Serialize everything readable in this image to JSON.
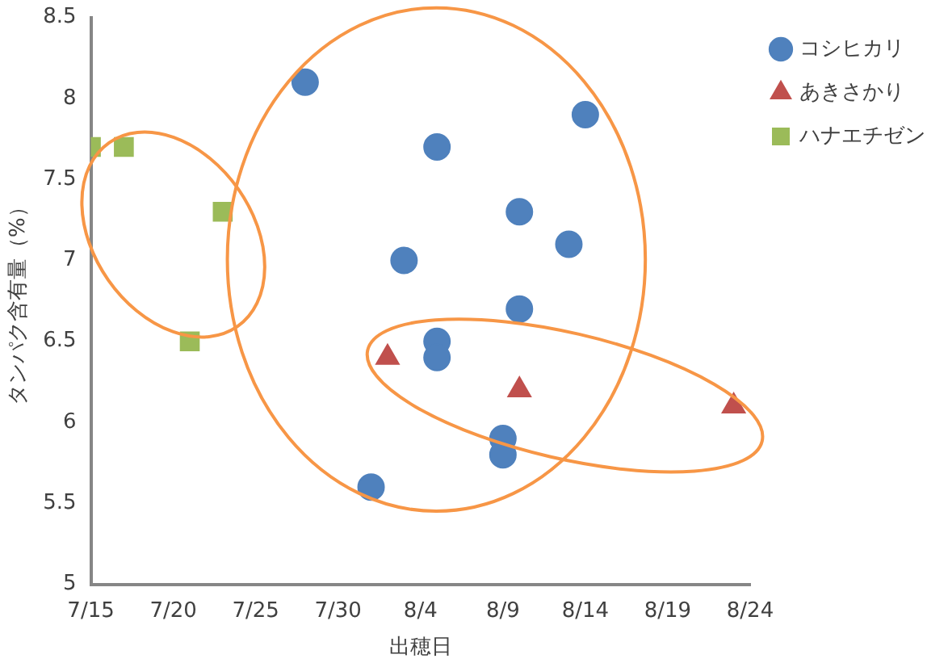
{
  "chart_data": {
    "type": "scatter",
    "xlabel": "出穂日",
    "ylabel": "タンパク含有量（%）",
    "xlim": [
      "--07-15",
      "--08-24"
    ],
    "xticks": [
      {
        "value": "--07-15",
        "label": "7/15"
      },
      {
        "value": "--07-20",
        "label": "7/20"
      },
      {
        "value": "--07-25",
        "label": "7/25"
      },
      {
        "value": "--07-30",
        "label": "7/30"
      },
      {
        "value": "--08-04",
        "label": "8/4"
      },
      {
        "value": "--08-09",
        "label": "8/9"
      },
      {
        "value": "--08-14",
        "label": "8/14"
      },
      {
        "value": "--08-19",
        "label": "8/19"
      },
      {
        "value": "--08-24",
        "label": "8/24"
      }
    ],
    "ylim": [
      5,
      8.5
    ],
    "yticks": [
      5,
      5.5,
      6,
      6.5,
      7,
      7.5,
      8,
      8.5
    ],
    "grid": false,
    "legend": "top right",
    "series": [
      {
        "name": "コシヒカリ",
        "color": "#4f81bd",
        "marker": "circle",
        "x": [
          "--07-28",
          "--08-01",
          "--08-03",
          "--08-05",
          "--08-05",
          "--08-05",
          "--08-10",
          "--08-10",
          "--08-09",
          "--08-09",
          "--08-13",
          "--08-14"
        ],
        "values": [
          8.1,
          5.6,
          7.0,
          7.7,
          6.5,
          6.4,
          7.3,
          6.7,
          5.9,
          5.8,
          7.1,
          7.9
        ]
      },
      {
        "name": "あきさかり",
        "color": "#c0504d",
        "marker": "triangle",
        "x": [
          "--08-02",
          "--08-10",
          "--08-23"
        ],
        "values": [
          6.4,
          6.2,
          6.1
        ]
      },
      {
        "name": "ハナエチゼン",
        "color": "#9bbb59",
        "marker": "square",
        "x": [
          "--07-15",
          "--07-17",
          "--07-23",
          "--07-21"
        ],
        "values": [
          7.7,
          7.7,
          7.3,
          6.5
        ]
      }
    ]
  }
}
